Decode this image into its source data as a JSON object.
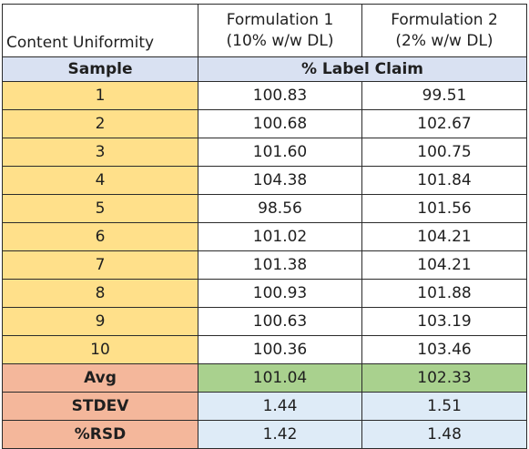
{
  "table": {
    "title": "Content Uniformity",
    "formulations": [
      {
        "name": "Formulation 1",
        "detail": "(10% w/w DL)"
      },
      {
        "name": "Formulation 2",
        "detail": "(2% w/w DL)"
      }
    ],
    "sample_header": "Sample",
    "claim_header": "% Label Claim",
    "rows": [
      {
        "sample": "1",
        "f1": "100.83",
        "f2": "99.51"
      },
      {
        "sample": "2",
        "f1": "100.68",
        "f2": "102.67"
      },
      {
        "sample": "3",
        "f1": "101.60",
        "f2": "100.75"
      },
      {
        "sample": "4",
        "f1": "104.38",
        "f2": "101.84"
      },
      {
        "sample": "5",
        "f1": "98.56",
        "f2": "101.56"
      },
      {
        "sample": "6",
        "f1": "101.02",
        "f2": "104.21"
      },
      {
        "sample": "7",
        "f1": "101.38",
        "f2": "104.21"
      },
      {
        "sample": "8",
        "f1": "100.93",
        "f2": "101.88"
      },
      {
        "sample": "9",
        "f1": "100.63",
        "f2": "103.19"
      },
      {
        "sample": "10",
        "f1": "100.36",
        "f2": "103.46"
      }
    ],
    "stats": [
      {
        "label": "Avg",
        "f1": "101.04",
        "f2": "102.33"
      },
      {
        "label": "STDEV",
        "f1": "1.44",
        "f2": "1.51"
      },
      {
        "label": "%RSD",
        "f1": "1.42",
        "f2": "1.48"
      }
    ]
  },
  "colors": {
    "band_blue": "#d9e1f2",
    "sample_yellow": "#ffe08a",
    "stat_salmon": "#f4b79b",
    "avg_green": "#a9d18e",
    "stat_value_blue": "#deebf7"
  }
}
